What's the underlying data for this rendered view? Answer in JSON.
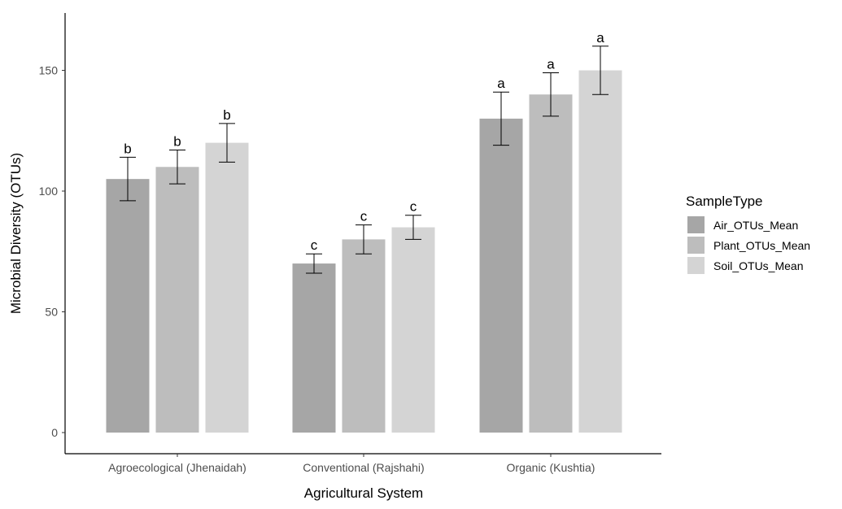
{
  "chart_data": {
    "type": "bar",
    "title": "",
    "xlabel": "Agricultural System",
    "ylabel": "Microbial Diversity (OTUs)",
    "ylim": [
      0,
      175
    ],
    "yticks": [
      0,
      50,
      100,
      150
    ],
    "categories": [
      "Agroecological (Jhenaidah)",
      "Conventional (Rajshahi)",
      "Organic (Kushtia)"
    ],
    "grid": false,
    "legend": {
      "title": "SampleType",
      "placement": "right"
    },
    "series": [
      {
        "name": "Air_OTUs_Mean",
        "color": "#a6a6a6",
        "values": [
          105,
          70,
          130
        ],
        "err_low": [
          96,
          66,
          119
        ],
        "err_high": [
          114,
          74,
          141
        ],
        "labels": [
          "b",
          "c",
          "a"
        ]
      },
      {
        "name": "Plant_OTUs_Mean",
        "color": "#bdbdbd",
        "values": [
          110,
          80,
          140
        ],
        "err_low": [
          103,
          74,
          131
        ],
        "err_high": [
          117,
          86,
          149
        ],
        "labels": [
          "b",
          "c",
          "a"
        ]
      },
      {
        "name": "Soil_OTUs_Mean",
        "color": "#d4d4d4",
        "values": [
          120,
          85,
          150
        ],
        "err_low": [
          112,
          80,
          140
        ],
        "err_high": [
          128,
          90,
          160
        ],
        "labels": [
          "b",
          "c",
          "a"
        ]
      }
    ]
  }
}
